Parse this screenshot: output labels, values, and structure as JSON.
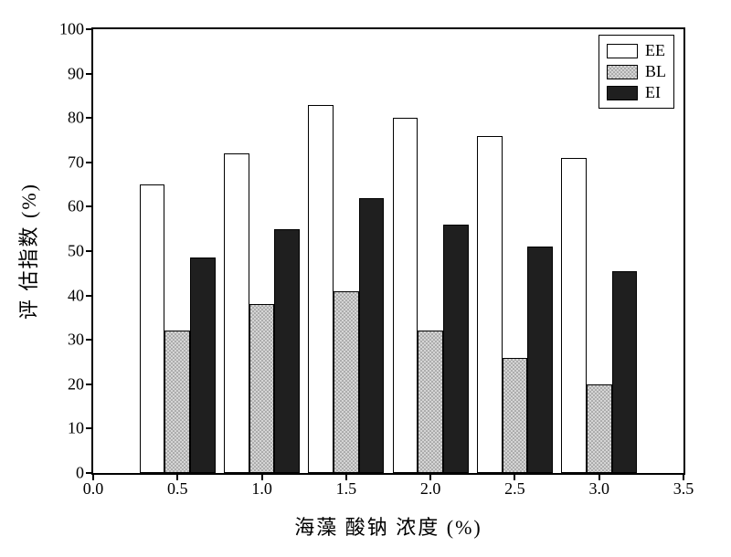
{
  "chart": {
    "type": "bar",
    "title": "",
    "xlabel": "海藻 酸钠  浓度 (%)",
    "ylabel": "评  估指数 (%)",
    "xlim": [
      0.0,
      3.5
    ],
    "ylim": [
      0,
      100
    ],
    "xtick_step": 0.5,
    "ytick_step": 10,
    "xticks": [
      "0.0",
      "0.5",
      "1.0",
      "1.5",
      "2.0",
      "2.5",
      "3.0",
      "3.5"
    ],
    "yticks": [
      "0",
      "10",
      "20",
      "30",
      "40",
      "50",
      "60",
      "70",
      "80",
      "90",
      "100"
    ],
    "background_color": "#ffffff",
    "axis_color": "#000000",
    "tick_fontsize": 18,
    "label_fontsize": 22,
    "legend_fontsize": 18,
    "bar_width": 0.15,
    "bar_border_color": "#000000",
    "categories": [
      0.5,
      1.0,
      1.5,
      2.0,
      2.5,
      3.0
    ],
    "series": [
      {
        "name": "EE",
        "fill_type": "solid",
        "fill_color": "#ffffff",
        "values": [
          65,
          72,
          83,
          80,
          76,
          71
        ]
      },
      {
        "name": "BL",
        "fill_type": "dots",
        "fill_color": "#c9c9c9",
        "dot_color": "#7a7a7a",
        "values": [
          32,
          38,
          41,
          32,
          26,
          20
        ]
      },
      {
        "name": "EI",
        "fill_type": "solid",
        "fill_color": "#1f1f1f",
        "values": [
          48.5,
          55,
          62,
          56,
          51,
          45.5
        ]
      }
    ],
    "legend": {
      "position": "top-right",
      "border_color": "#000000",
      "items": [
        "EE",
        "BL",
        "EI"
      ]
    }
  }
}
